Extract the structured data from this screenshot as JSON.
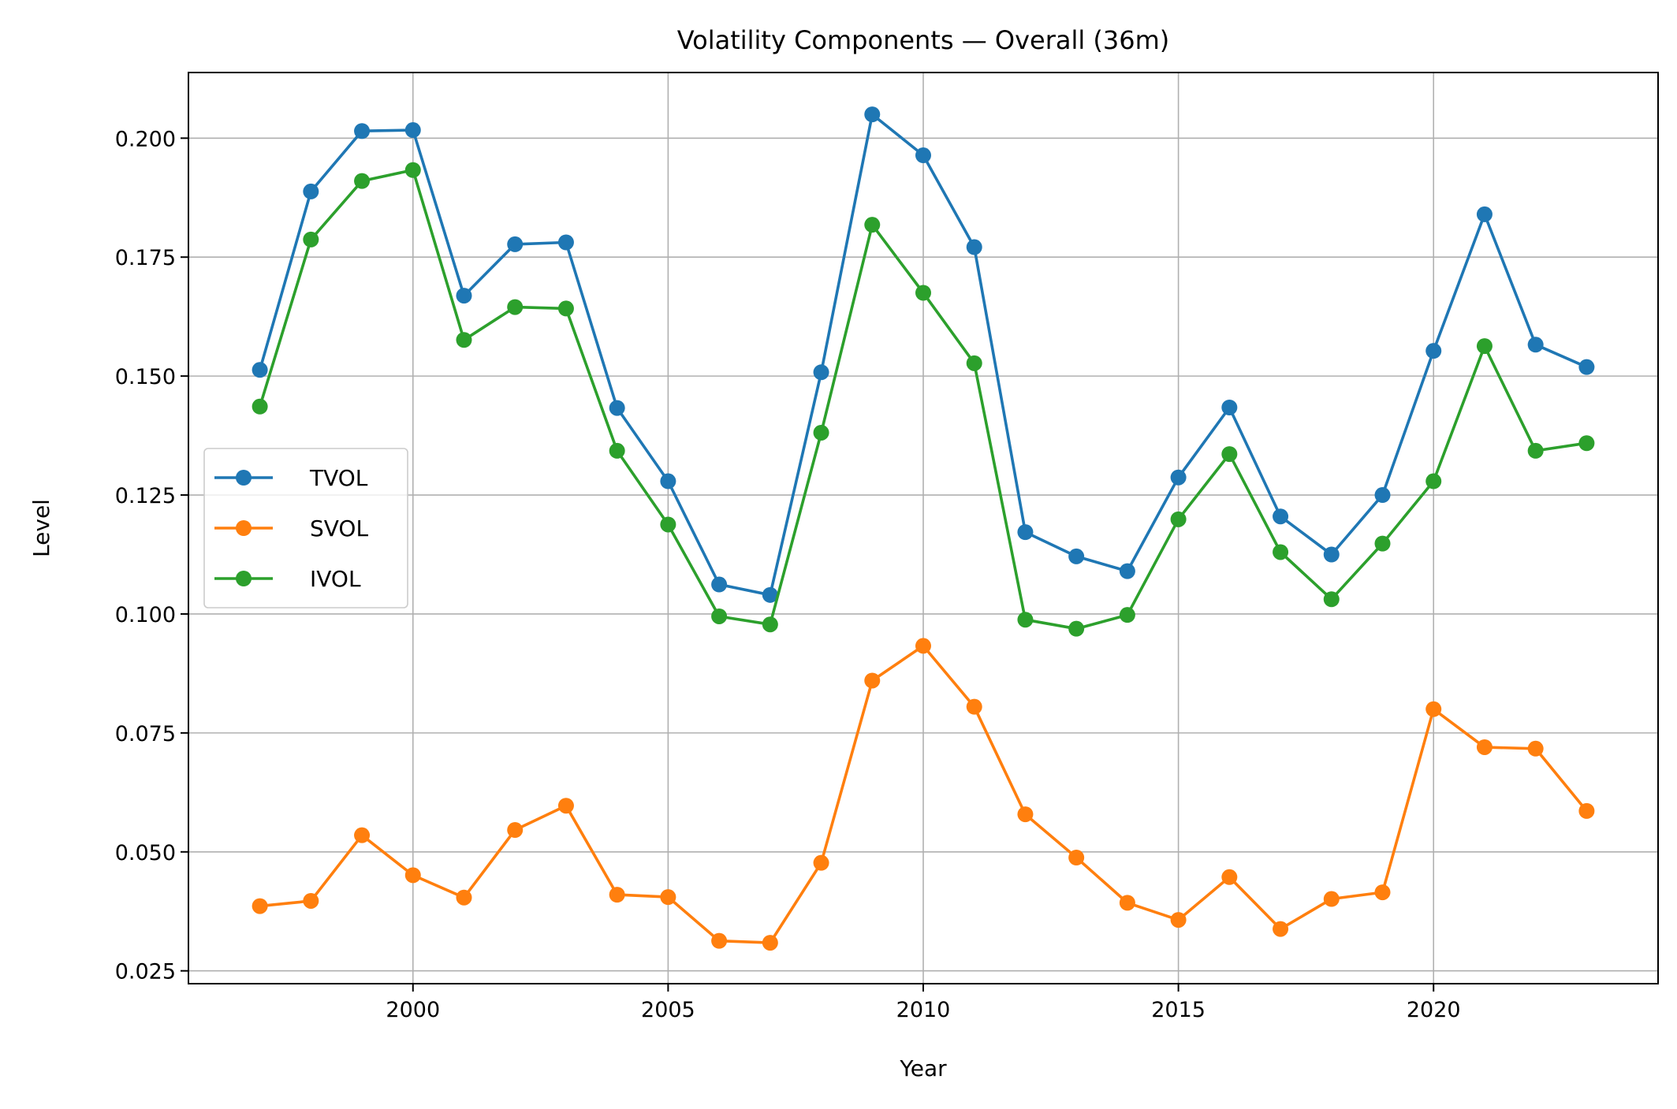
{
  "chart_data": {
    "type": "line",
    "title": "Volatility Components — Overall (36m)",
    "xlabel": "Year",
    "ylabel": "Level",
    "xlim": [
      1995.6,
      2024.4
    ],
    "ylim": [
      0.0223,
      0.2138
    ],
    "grid": true,
    "legend_position": "center-left",
    "x_ticks": [
      2000,
      2005,
      2010,
      2015,
      2020
    ],
    "y_ticks": [
      0.025,
      0.05,
      0.075,
      0.1,
      0.125,
      0.15,
      0.175,
      0.2
    ],
    "x_tick_labels": [
      "2000",
      "2005",
      "2010",
      "2015",
      "2020"
    ],
    "y_tick_labels": [
      "0.025",
      "0.050",
      "0.075",
      "0.100",
      "0.125",
      "0.150",
      "0.175",
      "0.200"
    ],
    "x": [
      1997,
      1998,
      1999,
      2000,
      2001,
      2002,
      2003,
      2004,
      2005,
      2006,
      2007,
      2008,
      2009,
      2010,
      2011,
      2012,
      2013,
      2014,
      2015,
      2016,
      2017,
      2018,
      2019,
      2020,
      2021,
      2022,
      2023
    ],
    "series": [
      {
        "name": "TVOL",
        "color": "#1f77b4",
        "values": [
          0.1513,
          0.1888,
          0.2015,
          0.2017,
          0.1669,
          0.1777,
          0.1781,
          0.1433,
          0.1279,
          0.1062,
          0.104,
          0.1508,
          0.205,
          0.1964,
          0.1771,
          0.1172,
          0.1121,
          0.109,
          0.1287,
          0.1434,
          0.1205,
          0.1125,
          0.125,
          0.1553,
          0.184,
          0.1566,
          0.1519
        ]
      },
      {
        "name": "SVOL",
        "color": "#ff7f0e",
        "values": [
          0.0386,
          0.0397,
          0.0535,
          0.0451,
          0.0404,
          0.0546,
          0.0597,
          0.041,
          0.0405,
          0.0313,
          0.0309,
          0.0477,
          0.086,
          0.0933,
          0.0805,
          0.0579,
          0.0488,
          0.0393,
          0.0357,
          0.0447,
          0.0338,
          0.0401,
          0.0415,
          0.08,
          0.072,
          0.0717,
          0.0586
        ]
      },
      {
        "name": "IVOL",
        "color": "#2ca02c",
        "values": [
          0.1436,
          0.1787,
          0.191,
          0.1933,
          0.1576,
          0.1645,
          0.1642,
          0.1343,
          0.1188,
          0.0995,
          0.0978,
          0.1381,
          0.1818,
          0.1675,
          0.1527,
          0.0988,
          0.0969,
          0.0998,
          0.1199,
          0.1336,
          0.113,
          0.1031,
          0.1148,
          0.1279,
          0.1563,
          0.1343,
          0.1359
        ]
      }
    ]
  }
}
